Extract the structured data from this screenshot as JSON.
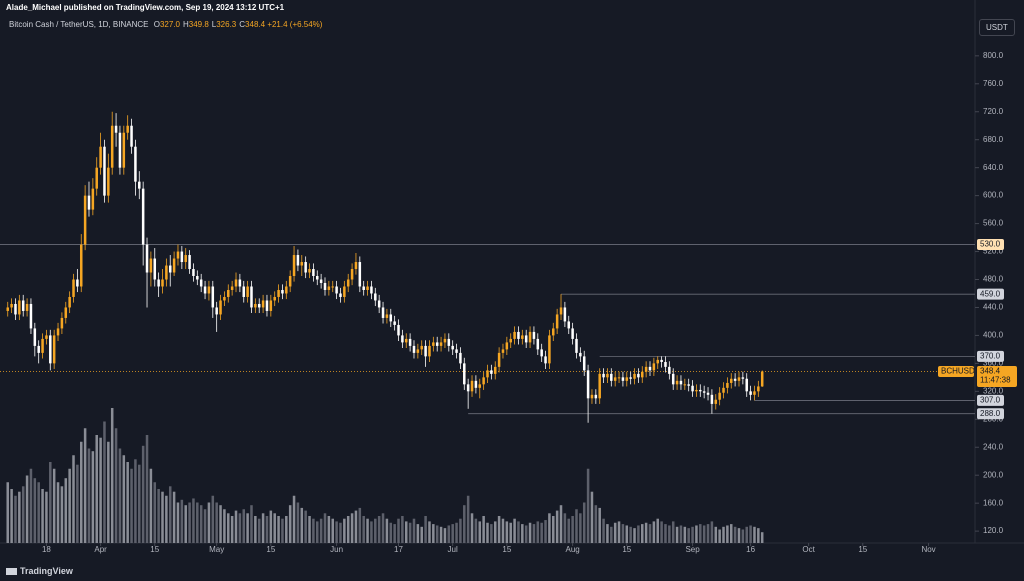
{
  "header": {
    "byline": "Alade_Michael published on TradingView.com, Sep 19, 2024 13:12 UTC+1"
  },
  "legend": {
    "symbol": "Bitcoin Cash / TetherUS, 1D, BINANCE",
    "ohlc": [
      {
        "label": "O",
        "value": "327.0"
      },
      {
        "label": "H",
        "value": "349.8"
      },
      {
        "label": "L",
        "value": "326.3"
      },
      {
        "label": "C",
        "value": "348.4"
      }
    ],
    "change": "+21.4 (+6.54%)"
  },
  "currency": "USDT",
  "footer": "TradingView",
  "chart_data": {
    "type": "candlestick",
    "up_color": "#f5a623",
    "down_color": "#ffffff",
    "x": [
      "Mar 8",
      "Mar 9",
      "Mar 10",
      "Mar 11",
      "Mar 12",
      "Mar 13",
      "Mar 14",
      "Mar 15",
      "Mar 16",
      "Mar 17",
      "Mar 18",
      "Mar 19",
      "Mar 20",
      "Mar 21",
      "Mar 22",
      "Mar 23",
      "Mar 24",
      "Mar 25",
      "Mar 26",
      "Mar 27",
      "Mar 28",
      "Mar 29",
      "Mar 30",
      "Mar 31",
      "Apr 1",
      "Apr 2",
      "Apr 3",
      "Apr 4",
      "Apr 5",
      "Apr 6",
      "Apr 7",
      "Apr 8",
      "Apr 9",
      "Apr 10",
      "Apr 11",
      "Apr 12",
      "Apr 13",
      "Apr 14",
      "Apr 15",
      "Apr 16",
      "Apr 17",
      "Apr 18",
      "Apr 19",
      "Apr 20",
      "Apr 21",
      "Apr 22",
      "Apr 23",
      "Apr 24",
      "Apr 25",
      "Apr 26",
      "Apr 27",
      "Apr 28",
      "Apr 29",
      "Apr 30",
      "May 1",
      "May 2",
      "May 3",
      "May 4",
      "May 5",
      "May 6",
      "May 7",
      "May 8",
      "May 9",
      "May 10",
      "May 11",
      "May 12",
      "May 13",
      "May 14",
      "May 15",
      "May 16",
      "May 17",
      "May 18",
      "May 19",
      "May 20",
      "May 21",
      "May 22",
      "May 23",
      "May 24",
      "May 25",
      "May 26",
      "May 27",
      "May 28",
      "May 29",
      "May 30",
      "May 31",
      "Jun 1",
      "Jun 2",
      "Jun 3",
      "Jun 4",
      "Jun 5",
      "Jun 6",
      "Jun 7",
      "Jun 8",
      "Jun 9",
      "Jun 10",
      "Jun 11",
      "Jun 12",
      "Jun 13",
      "Jun 14",
      "Jun 15",
      "Jun 16",
      "Jun 17",
      "Jun 18",
      "Jun 19",
      "Jun 20",
      "Jun 21",
      "Jun 22",
      "Jun 23",
      "Jun 24",
      "Jun 25",
      "Jun 26",
      "Jun 27",
      "Jun 28",
      "Jun 29",
      "Jun 30",
      "Jul 1",
      "Jul 2",
      "Jul 3",
      "Jul 4",
      "Jul 5",
      "Jul 6",
      "Jul 7",
      "Jul 8",
      "Jul 9",
      "Jul 10",
      "Jul 11",
      "Jul 12",
      "Jul 13",
      "Jul 14",
      "Jul 15",
      "Jul 16",
      "Jul 17",
      "Jul 18",
      "Jul 19",
      "Jul 20",
      "Jul 21",
      "Jul 22",
      "Jul 23",
      "Jul 24",
      "Jul 25",
      "Jul 26",
      "Jul 27",
      "Jul 28",
      "Jul 29",
      "Jul 30",
      "Jul 31",
      "Aug 1",
      "Aug 2",
      "Aug 3",
      "Aug 4",
      "Aug 5",
      "Aug 6",
      "Aug 7",
      "Aug 8",
      "Aug 9",
      "Aug 10",
      "Aug 11",
      "Aug 12",
      "Aug 13",
      "Aug 14",
      "Aug 15",
      "Aug 16",
      "Aug 17",
      "Aug 18",
      "Aug 19",
      "Aug 20",
      "Aug 21",
      "Aug 22",
      "Aug 23",
      "Aug 24",
      "Aug 25",
      "Aug 26",
      "Aug 27",
      "Aug 28",
      "Aug 29",
      "Aug 30",
      "Aug 31",
      "Sep 1",
      "Sep 2",
      "Sep 3",
      "Sep 4",
      "Sep 5",
      "Sep 6",
      "Sep 7",
      "Sep 8",
      "Sep 9",
      "Sep 10",
      "Sep 11",
      "Sep 12",
      "Sep 13",
      "Sep 14",
      "Sep 15",
      "Sep 16",
      "Sep 17",
      "Sep 18",
      "Sep 19"
    ],
    "open": [
      435,
      440,
      445,
      430,
      450,
      435,
      445,
      410,
      385,
      375,
      395,
      400,
      360,
      400,
      410,
      425,
      440,
      455,
      480,
      470,
      530,
      600,
      580,
      610,
      640,
      670,
      600,
      640,
      700,
      690,
      640,
      690,
      700,
      670,
      620,
      610,
      530,
      490,
      510,
      480,
      470,
      480,
      500,
      490,
      510,
      520,
      505,
      515,
      495,
      485,
      480,
      470,
      460,
      470,
      440,
      430,
      450,
      455,
      465,
      470,
      480,
      470,
      455,
      470,
      440,
      445,
      440,
      450,
      435,
      450,
      455,
      465,
      460,
      470,
      485,
      515,
      500,
      505,
      490,
      495,
      485,
      480,
      475,
      465,
      470,
      470,
      460,
      455,
      470,
      480,
      495,
      505,
      470,
      465,
      470,
      460,
      450,
      440,
      425,
      430,
      420,
      415,
      400,
      390,
      395,
      385,
      375,
      380,
      385,
      370,
      385,
      390,
      385,
      390,
      395,
      385,
      380,
      375,
      360,
      330,
      320,
      335,
      325,
      330,
      340,
      350,
      345,
      355,
      375,
      380,
      390,
      395,
      405,
      395,
      400,
      390,
      405,
      395,
      380,
      370,
      360,
      400,
      410,
      430,
      440,
      420,
      410,
      395,
      375,
      370,
      350,
      310,
      315,
      310,
      345,
      340,
      345,
      335,
      340,
      340,
      335,
      340,
      338,
      345,
      340,
      348,
      355,
      350,
      360,
      365,
      362,
      355,
      345,
      330,
      335,
      330,
      330,
      328,
      320,
      322,
      320,
      318,
      315,
      302,
      308,
      318,
      325,
      332,
      338,
      335,
      340,
      338,
      320,
      315,
      320,
      327
    ],
    "high": [
      448,
      453,
      453,
      458,
      458,
      453,
      453,
      418,
      393,
      403,
      408,
      408,
      408,
      418,
      433,
      448,
      463,
      488,
      495,
      545,
      615,
      620,
      625,
      655,
      690,
      680,
      660,
      720,
      718,
      700,
      700,
      715,
      710,
      680,
      635,
      620,
      540,
      520,
      525,
      490,
      495,
      510,
      515,
      520,
      530,
      528,
      525,
      522,
      503,
      493,
      488,
      478,
      478,
      478,
      448,
      458,
      463,
      473,
      478,
      490,
      488,
      478,
      478,
      478,
      453,
      453,
      458,
      458,
      458,
      463,
      473,
      473,
      478,
      493,
      528,
      523,
      515,
      513,
      503,
      503,
      493,
      488,
      483,
      478,
      478,
      478,
      468,
      478,
      488,
      503,
      518,
      513,
      478,
      478,
      478,
      468,
      458,
      448,
      438,
      438,
      428,
      423,
      408,
      403,
      403,
      393,
      388,
      393,
      393,
      393,
      398,
      398,
      398,
      403,
      403,
      393,
      388,
      383,
      368,
      338,
      343,
      343,
      338,
      348,
      358,
      358,
      363,
      383,
      388,
      398,
      403,
      413,
      413,
      408,
      408,
      413,
      413,
      403,
      388,
      378,
      408,
      418,
      438,
      459,
      448,
      428,
      418,
      403,
      383,
      378,
      358,
      323,
      323,
      353,
      353,
      353,
      353,
      348,
      348,
      348,
      348,
      348,
      353,
      353,
      356,
      363,
      363,
      368,
      370,
      370,
      370,
      363,
      353,
      343,
      343,
      338,
      338,
      336,
      330,
      330,
      328,
      326,
      323,
      316,
      326,
      333,
      340,
      346,
      346,
      348,
      348,
      346,
      328,
      328,
      335,
      349.8
    ],
    "low": [
      427,
      432,
      422,
      422,
      427,
      427,
      402,
      370,
      360,
      367,
      387,
      350,
      352,
      392,
      402,
      417,
      432,
      447,
      462,
      462,
      522,
      570,
      572,
      600,
      630,
      590,
      590,
      630,
      670,
      630,
      630,
      680,
      660,
      600,
      595,
      500,
      440,
      470,
      470,
      455,
      460,
      470,
      470,
      485,
      500,
      495,
      495,
      488,
      477,
      472,
      462,
      452,
      450,
      425,
      405,
      422,
      442,
      447,
      457,
      462,
      462,
      447,
      447,
      432,
      432,
      432,
      432,
      427,
      427,
      442,
      447,
      452,
      452,
      462,
      477,
      492,
      485,
      482,
      482,
      477,
      472,
      467,
      457,
      457,
      462,
      452,
      447,
      447,
      462,
      472,
      487,
      462,
      457,
      457,
      452,
      442,
      432,
      417,
      417,
      412,
      407,
      392,
      382,
      382,
      377,
      367,
      367,
      372,
      355,
      362,
      377,
      377,
      377,
      382,
      377,
      372,
      367,
      352,
      322,
      295,
      312,
      317,
      310,
      322,
      332,
      337,
      337,
      347,
      367,
      372,
      382,
      387,
      387,
      387,
      382,
      382,
      387,
      372,
      362,
      352,
      352,
      392,
      402,
      422,
      412,
      402,
      387,
      367,
      362,
      342,
      275,
      302,
      302,
      302,
      332,
      332,
      327,
      327,
      332,
      327,
      327,
      330,
      330,
      332,
      332,
      340,
      342,
      342,
      352,
      354,
      347,
      337,
      322,
      322,
      322,
      322,
      320,
      312,
      312,
      312,
      310,
      307,
      288,
      294,
      300,
      310,
      317,
      324,
      327,
      327,
      330,
      312,
      307,
      307,
      312,
      326.3
    ],
    "close": [
      440,
      445,
      430,
      450,
      435,
      445,
      410,
      385,
      375,
      395,
      400,
      360,
      400,
      410,
      425,
      440,
      455,
      480,
      470,
      530,
      600,
      580,
      610,
      640,
      670,
      600,
      640,
      700,
      690,
      640,
      690,
      700,
      670,
      620,
      610,
      530,
      490,
      510,
      480,
      470,
      480,
      500,
      490,
      510,
      520,
      505,
      515,
      495,
      485,
      480,
      470,
      460,
      470,
      440,
      430,
      450,
      455,
      465,
      470,
      480,
      470,
      455,
      470,
      440,
      445,
      440,
      450,
      435,
      450,
      455,
      465,
      460,
      470,
      485,
      515,
      500,
      505,
      490,
      495,
      485,
      480,
      475,
      465,
      470,
      470,
      460,
      455,
      470,
      480,
      495,
      505,
      470,
      465,
      470,
      460,
      450,
      440,
      425,
      430,
      420,
      415,
      400,
      390,
      395,
      385,
      375,
      380,
      385,
      370,
      385,
      390,
      385,
      390,
      395,
      385,
      380,
      375,
      360,
      330,
      320,
      335,
      325,
      330,
      340,
      350,
      345,
      355,
      375,
      380,
      390,
      395,
      405,
      395,
      400,
      390,
      405,
      395,
      380,
      370,
      360,
      400,
      410,
      430,
      440,
      420,
      410,
      395,
      375,
      370,
      350,
      310,
      315,
      310,
      345,
      340,
      345,
      335,
      340,
      340,
      335,
      340,
      338,
      345,
      340,
      348,
      355,
      350,
      360,
      365,
      362,
      355,
      345,
      330,
      335,
      330,
      330,
      328,
      320,
      322,
      320,
      318,
      315,
      302,
      308,
      318,
      325,
      332,
      338,
      335,
      340,
      338,
      320,
      315,
      320,
      327,
      348.4
    ],
    "volume": [
      45,
      40,
      35,
      38,
      42,
      50,
      55,
      48,
      45,
      40,
      38,
      60,
      55,
      45,
      42,
      48,
      55,
      65,
      58,
      75,
      85,
      70,
      68,
      80,
      78,
      90,
      75,
      100,
      85,
      70,
      65,
      60,
      55,
      62,
      58,
      72,
      80,
      55,
      45,
      40,
      38,
      35,
      42,
      38,
      30,
      32,
      28,
      30,
      33,
      30,
      28,
      25,
      30,
      35,
      30,
      28,
      25,
      22,
      20,
      24,
      22,
      25,
      22,
      28,
      20,
      18,
      22,
      20,
      24,
      22,
      20,
      18,
      20,
      28,
      35,
      30,
      26,
      24,
      20,
      18,
      16,
      18,
      22,
      20,
      18,
      16,
      15,
      18,
      20,
      22,
      24,
      26,
      20,
      18,
      16,
      18,
      20,
      22,
      18,
      15,
      14,
      18,
      20,
      16,
      15,
      18,
      14,
      12,
      20,
      16,
      14,
      13,
      12,
      11,
      13,
      14,
      15,
      18,
      28,
      35,
      22,
      18,
      16,
      20,
      15,
      14,
      16,
      20,
      18,
      16,
      15,
      18,
      16,
      14,
      13,
      15,
      14,
      16,
      15,
      17,
      22,
      20,
      24,
      28,
      22,
      18,
      20,
      25,
      22,
      30,
      55,
      38,
      28,
      26,
      18,
      14,
      12,
      15,
      16,
      14,
      13,
      12,
      11,
      13,
      14,
      15,
      14,
      16,
      18,
      16,
      14,
      13,
      16,
      12,
      13,
      12,
      11,
      12,
      13,
      14,
      13,
      14,
      16,
      12,
      10,
      12,
      13,
      14,
      12,
      11,
      10,
      12,
      13,
      12,
      11,
      8
    ],
    "xlim": [
      "Mar 6",
      "Nov 13"
    ],
    "xticks": [
      {
        "value": "Mar 18",
        "label": "18"
      },
      {
        "value": "Apr 1",
        "label": "Apr"
      },
      {
        "value": "Apr 15",
        "label": "15"
      },
      {
        "value": "May 1",
        "label": "May"
      },
      {
        "value": "May 15",
        "label": "15"
      },
      {
        "value": "Jun 1",
        "label": "Jun"
      },
      {
        "value": "Jun 17",
        "label": "17"
      },
      {
        "value": "Jul 1",
        "label": "Jul"
      },
      {
        "value": "Jul 15",
        "label": "15"
      },
      {
        "value": "Aug 1",
        "label": "Aug"
      },
      {
        "value": "Aug 15",
        "label": "15"
      },
      {
        "value": "Sep 1",
        "label": "Sep"
      },
      {
        "value": "Sep 16",
        "label": "16"
      },
      {
        "value": "Oct 1",
        "label": "Oct"
      },
      {
        "value": "Oct 15",
        "label": "15"
      },
      {
        "value": "Nov 1",
        "label": "Nov"
      }
    ],
    "ylim": [
      103,
      857
    ],
    "yticks": [
      {
        "value": 120,
        "label": "120.0"
      },
      {
        "value": 160,
        "label": "160.0"
      },
      {
        "value": 200,
        "label": "200.0"
      },
      {
        "value": 240,
        "label": "240.0"
      },
      {
        "value": 280,
        "label": "280.0"
      },
      {
        "value": 320,
        "label": "320.0"
      },
      {
        "value": 360,
        "label": "360.0"
      },
      {
        "value": 400,
        "label": "400.0"
      },
      {
        "value": 440,
        "label": "440.0"
      },
      {
        "value": 480,
        "label": "480.0"
      },
      {
        "value": 520,
        "label": "520.0"
      },
      {
        "value": 560,
        "label": "560.0"
      },
      {
        "value": 600,
        "label": "600.0"
      },
      {
        "value": 640,
        "label": "640.0"
      },
      {
        "value": 680,
        "label": "680.0"
      },
      {
        "value": 720,
        "label": "720.0"
      },
      {
        "value": 760,
        "label": "760.0"
      },
      {
        "value": 800,
        "label": "800.0"
      }
    ],
    "levels": [
      {
        "value": 530,
        "label": "530.0",
        "start": "Mar 6"
      },
      {
        "value": 459,
        "label": "459.0",
        "start": "Jul 29"
      },
      {
        "value": 370,
        "label": "370.0",
        "start": "Aug 8"
      },
      {
        "value": 307,
        "label": "307.0",
        "start": "Sep 17"
      },
      {
        "value": 288,
        "label": "288.0",
        "start": "Jul 5"
      }
    ],
    "last": {
      "name": "BCHUSDT",
      "value": 348.4,
      "value_label": "348.4",
      "countdown": "11:47:38"
    }
  }
}
